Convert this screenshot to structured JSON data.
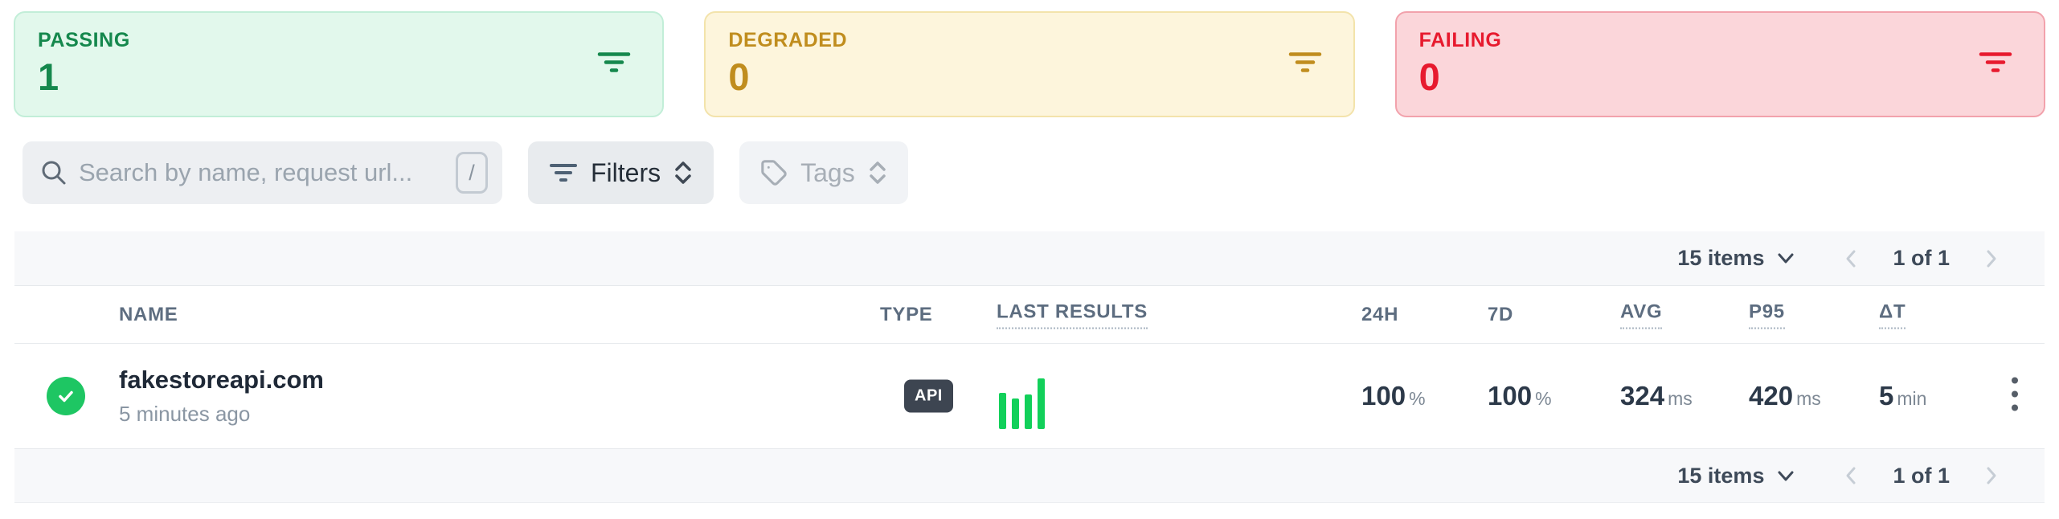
{
  "status_cards": [
    {
      "label": "PASSING",
      "count": "1",
      "text_color": "#15884d",
      "bg": "#e2f8ec",
      "border": "#c2eed8"
    },
    {
      "label": "DEGRADED",
      "count": "0",
      "text_color": "#c08d1e",
      "bg": "#fdf5dc",
      "border": "#f3e3ab"
    },
    {
      "label": "FAILING",
      "count": "0",
      "text_color": "#e71a2e",
      "bg": "#fbd6da",
      "border": "#f2a2ac"
    }
  ],
  "toolbar": {
    "search_placeholder": "Search by name, request url...",
    "search_shortcut": "/",
    "filters_label": "Filters",
    "tags_label": "Tags"
  },
  "pagination_top": {
    "items_label": "15 items",
    "page_label": "1 of 1"
  },
  "pagination_bottom": {
    "items_label": "15 items",
    "page_label": "1 of 1"
  },
  "table": {
    "columns": [
      {
        "label": "NAME"
      },
      {
        "label": "TYPE"
      },
      {
        "label": "LAST RESULTS"
      },
      {
        "label": "24H"
      },
      {
        "label": "7D"
      },
      {
        "label": "AVG"
      },
      {
        "label": "P95"
      },
      {
        "label": "ΔT"
      }
    ],
    "rows": [
      {
        "status": "passing",
        "name": "fakestoreapi.com",
        "last_run": "5 minutes ago",
        "type_badge": "API",
        "last_results_bars": [
          72,
          60,
          68,
          100
        ],
        "metrics": {
          "h24": {
            "value": "100",
            "unit": "%"
          },
          "d7": {
            "value": "100",
            "unit": "%"
          },
          "avg": {
            "value": "324",
            "unit": "ms"
          },
          "p95": {
            "value": "420",
            "unit": "ms"
          },
          "dt": {
            "value": "5",
            "unit": "min"
          }
        }
      }
    ]
  },
  "colors": {
    "success_green": "#1ec663",
    "bars_green": "#12d05a",
    "badge_bg": "#3d4551"
  }
}
